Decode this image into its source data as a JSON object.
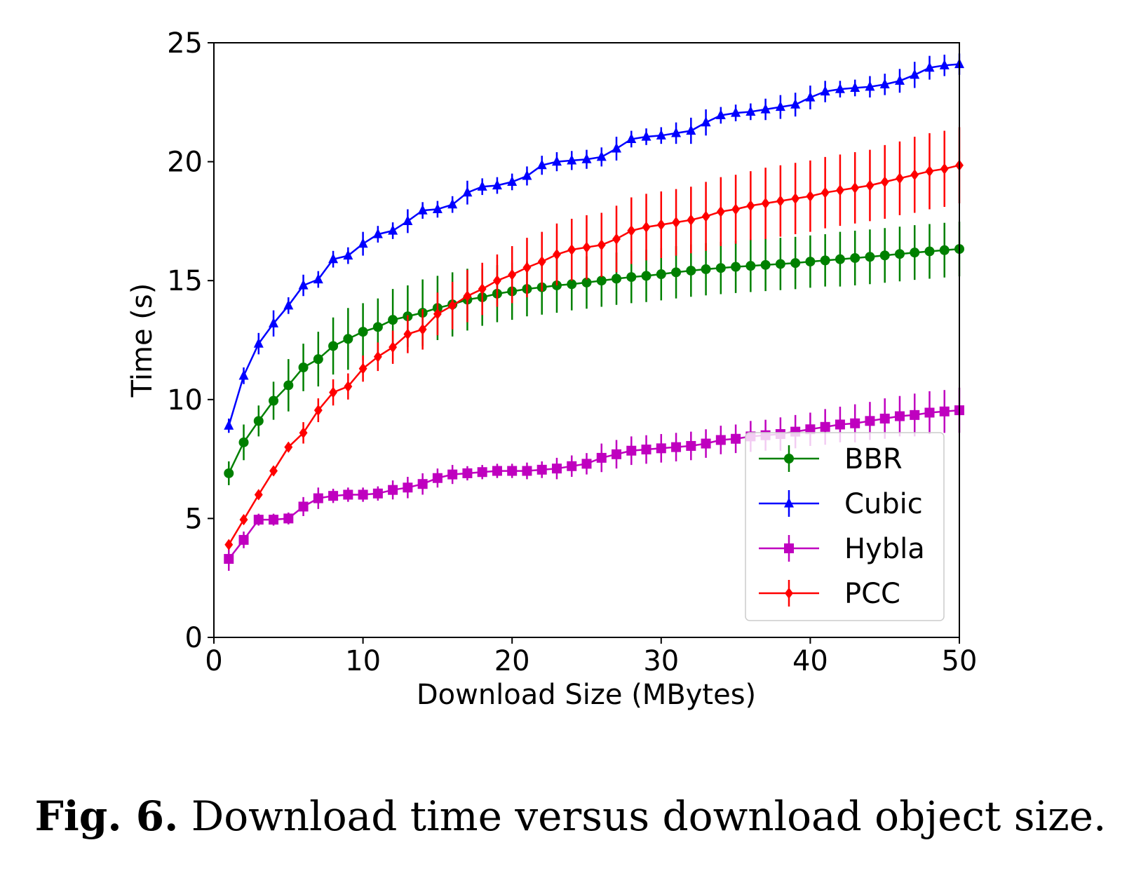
{
  "chart_data": {
    "type": "line",
    "xlabel": "Download Size (MBytes)",
    "ylabel": "Time (s)",
    "xlim": [
      0,
      50
    ],
    "ylim": [
      0,
      25
    ],
    "xticks": [
      "0",
      "10",
      "20",
      "30",
      "40",
      "50"
    ],
    "yticks": [
      "0",
      "5",
      "10",
      "15",
      "20",
      "25"
    ],
    "grid": false,
    "legend_position": "lower-right",
    "x": [
      1,
      2,
      3,
      4,
      5,
      6,
      7,
      8,
      9,
      10,
      11,
      12,
      13,
      14,
      15,
      16,
      17,
      18,
      19,
      20,
      21,
      22,
      23,
      24,
      25,
      26,
      27,
      28,
      29,
      30,
      31,
      32,
      33,
      34,
      35,
      36,
      37,
      38,
      39,
      40,
      41,
      42,
      43,
      44,
      45,
      46,
      47,
      48,
      49,
      50
    ],
    "series": [
      {
        "name": "BBR",
        "color": "#008000",
        "marker": "circle",
        "values": [
          6.9,
          8.2,
          9.1,
          9.95,
          10.6,
          11.35,
          11.7,
          12.25,
          12.55,
          12.85,
          13.05,
          13.35,
          13.5,
          13.65,
          13.85,
          14.0,
          14.2,
          14.3,
          14.45,
          14.55,
          14.65,
          14.72,
          14.8,
          14.85,
          14.92,
          15.0,
          15.08,
          15.15,
          15.2,
          15.27,
          15.35,
          15.42,
          15.48,
          15.53,
          15.58,
          15.62,
          15.66,
          15.7,
          15.74,
          15.8,
          15.85,
          15.9,
          15.95,
          16.0,
          16.06,
          16.12,
          16.18,
          16.23,
          16.28,
          16.33
        ],
        "errors": [
          0.5,
          0.75,
          0.65,
          0.8,
          1.1,
          1.0,
          1.15,
          1.2,
          1.3,
          1.2,
          1.2,
          1.3,
          1.3,
          1.4,
          1.35,
          1.35,
          1.3,
          1.2,
          1.2,
          1.2,
          1.15,
          1.15,
          1.15,
          1.1,
          1.1,
          1.1,
          1.1,
          1.1,
          1.1,
          1.1,
          1.1,
          1.1,
          1.1,
          1.1,
          1.1,
          1.1,
          1.1,
          1.1,
          1.1,
          1.1,
          1.1,
          1.15,
          1.15,
          1.15,
          1.15,
          1.15,
          1.15,
          1.15,
          1.15,
          1.15
        ]
      },
      {
        "name": "Cubic",
        "color": "#0000ff",
        "marker": "triangle",
        "values": [
          8.9,
          11.0,
          12.35,
          13.2,
          13.95,
          14.8,
          15.05,
          15.9,
          16.05,
          16.55,
          16.95,
          17.1,
          17.5,
          17.95,
          18.0,
          18.2,
          18.7,
          18.95,
          19.0,
          19.15,
          19.4,
          19.85,
          20.0,
          20.05,
          20.1,
          20.2,
          20.55,
          20.95,
          21.05,
          21.1,
          21.2,
          21.3,
          21.65,
          21.95,
          22.05,
          22.1,
          22.2,
          22.3,
          22.4,
          22.7,
          22.95,
          23.05,
          23.1,
          23.15,
          23.25,
          23.4,
          23.65,
          23.95,
          24.05,
          24.1
        ],
        "errors": [
          0.3,
          0.35,
          0.45,
          0.55,
          0.35,
          0.45,
          0.35,
          0.35,
          0.35,
          0.5,
          0.35,
          0.35,
          0.5,
          0.35,
          0.35,
          0.35,
          0.5,
          0.35,
          0.35,
          0.35,
          0.4,
          0.4,
          0.4,
          0.4,
          0.4,
          0.4,
          0.5,
          0.35,
          0.35,
          0.35,
          0.45,
          0.55,
          0.55,
          0.35,
          0.35,
          0.35,
          0.45,
          0.5,
          0.5,
          0.5,
          0.45,
          0.35,
          0.35,
          0.45,
          0.45,
          0.5,
          0.55,
          0.5,
          0.45,
          0.45
        ]
      },
      {
        "name": "Hybla",
        "color": "#bf00bf",
        "marker": "square",
        "values": [
          3.3,
          4.1,
          4.95,
          4.95,
          5.0,
          5.5,
          5.85,
          5.95,
          6.0,
          6.0,
          6.05,
          6.2,
          6.3,
          6.45,
          6.7,
          6.85,
          6.9,
          6.95,
          7.0,
          7.0,
          7.0,
          7.05,
          7.1,
          7.2,
          7.3,
          7.55,
          7.7,
          7.85,
          7.9,
          7.95,
          8.0,
          8.05,
          8.15,
          8.3,
          8.35,
          8.45,
          8.5,
          8.55,
          8.65,
          8.75,
          8.85,
          8.95,
          9.0,
          9.1,
          9.2,
          9.3,
          9.35,
          9.45,
          9.5,
          9.55
        ],
        "errors": [
          0.5,
          0.35,
          0.25,
          0.25,
          0.25,
          0.4,
          0.45,
          0.3,
          0.3,
          0.3,
          0.3,
          0.4,
          0.45,
          0.45,
          0.4,
          0.4,
          0.3,
          0.3,
          0.3,
          0.3,
          0.35,
          0.35,
          0.45,
          0.45,
          0.45,
          0.6,
          0.6,
          0.6,
          0.6,
          0.6,
          0.6,
          0.6,
          0.6,
          0.6,
          0.6,
          0.65,
          0.65,
          0.7,
          0.7,
          0.7,
          0.75,
          0.75,
          0.8,
          0.8,
          0.85,
          0.85,
          0.9,
          0.9,
          0.9,
          0.95
        ]
      },
      {
        "name": "PCC",
        "color": "#ff0000",
        "marker": "diamond",
        "values": [
          3.9,
          4.95,
          6.0,
          7.0,
          8.0,
          8.6,
          9.55,
          10.3,
          10.55,
          11.3,
          11.8,
          12.2,
          12.75,
          12.95,
          13.6,
          13.95,
          14.35,
          14.65,
          15.0,
          15.25,
          15.55,
          15.8,
          16.1,
          16.3,
          16.4,
          16.5,
          16.75,
          17.1,
          17.25,
          17.35,
          17.45,
          17.55,
          17.7,
          17.9,
          18.0,
          18.15,
          18.25,
          18.35,
          18.45,
          18.55,
          18.7,
          18.8,
          18.9,
          19.0,
          19.15,
          19.3,
          19.45,
          19.6,
          19.7,
          19.85
        ],
        "errors": [
          0.2,
          0.2,
          0.2,
          0.2,
          0.2,
          0.45,
          0.5,
          0.55,
          0.55,
          0.55,
          0.6,
          0.7,
          0.8,
          0.85,
          0.9,
          1.0,
          1.1,
          1.1,
          1.1,
          1.2,
          1.25,
          1.25,
          1.3,
          1.3,
          1.35,
          1.35,
          1.4,
          1.4,
          1.4,
          1.4,
          1.4,
          1.4,
          1.45,
          1.45,
          1.45,
          1.45,
          1.5,
          1.5,
          1.5,
          1.5,
          1.5,
          1.5,
          1.5,
          1.5,
          1.55,
          1.55,
          1.6,
          1.6,
          1.6,
          1.6
        ]
      }
    ]
  },
  "caption": {
    "label": "Fig. 6.",
    "text": "Download time versus download object size."
  }
}
